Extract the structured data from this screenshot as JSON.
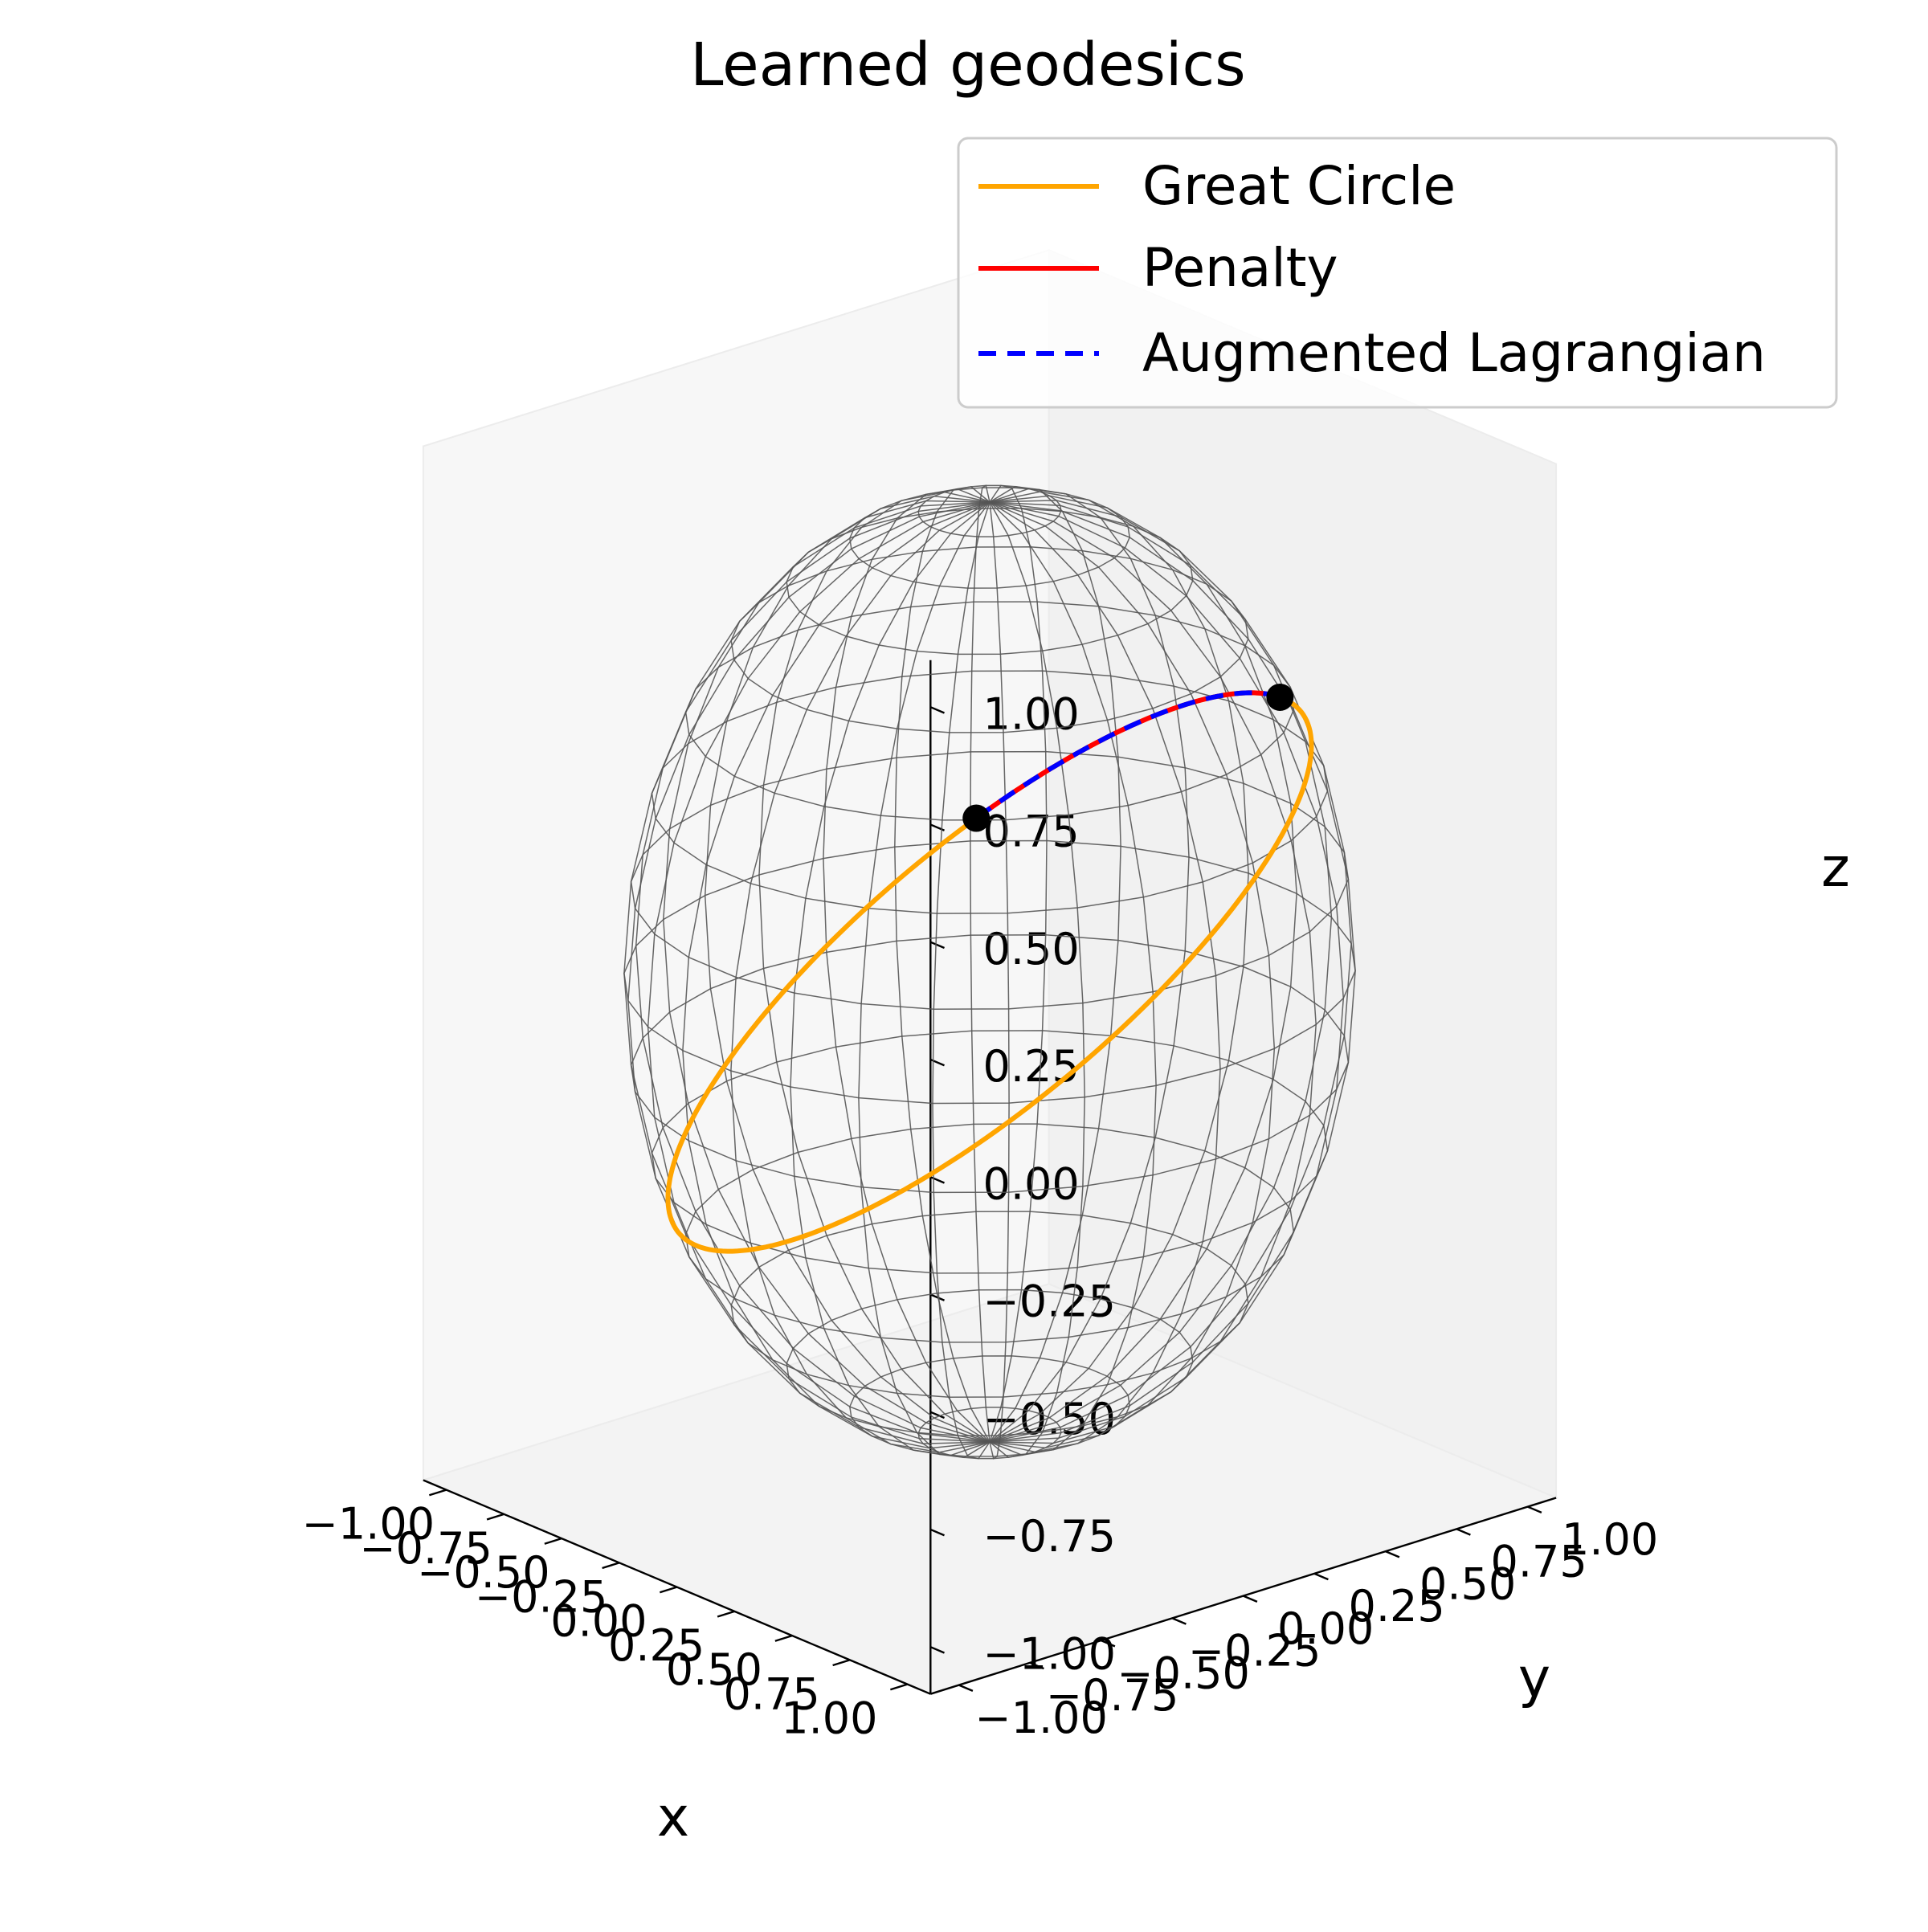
{
  "chart_data": {
    "type": "line",
    "projection": "3d",
    "title": "Learned geodesics",
    "xlabel": "x",
    "ylabel": "y",
    "zlabel": "z",
    "xlim": [
      -1.1,
      1.1
    ],
    "ylim": [
      -1.1,
      1.1
    ],
    "zlim": [
      -1.1,
      1.1
    ],
    "x_ticks": [
      "−1.00",
      "−0.75",
      "−0.50",
      "−0.25",
      "0.00",
      "0.25",
      "0.50",
      "0.75",
      "1.00"
    ],
    "y_ticks": [
      "−1.00",
      "−0.75",
      "−0.50",
      "−0.25",
      "0.00",
      "0.25",
      "0.50",
      "0.75",
      "1.00"
    ],
    "z_ticks": [
      "−1.00",
      "−0.75",
      "−0.50",
      "−0.25",
      "0.00",
      "0.25",
      "0.50",
      "0.75",
      "1.00"
    ],
    "surface": {
      "type": "wireframe",
      "shape": "unit sphere",
      "color": "#555555"
    },
    "legend": {
      "position": "top-right",
      "entries": [
        {
          "label": "Great Circle",
          "color": "#ffa500",
          "style": "solid"
        },
        {
          "label": "Penalty",
          "color": "#ff0000",
          "style": "solid"
        },
        {
          "label": "Augmented Lagrangian",
          "color": "#0000ff",
          "style": "dashed"
        }
      ]
    },
    "endpoints": [
      {
        "x": 0.62,
        "y": -0.55,
        "z": 0.56
      },
      {
        "x": 0.58,
        "y": 0.55,
        "z": 0.6
      }
    ],
    "series": [
      {
        "name": "Great Circle",
        "type": "great-circle",
        "color": "#ffa500",
        "through": "endpoints"
      },
      {
        "name": "Penalty",
        "type": "geodesic-arc",
        "color": "#ff0000",
        "through": "endpoints"
      },
      {
        "name": "Augmented Lagrangian",
        "type": "geodesic-arc",
        "color": "#0000ff",
        "through": "endpoints",
        "dashed": true
      }
    ]
  }
}
